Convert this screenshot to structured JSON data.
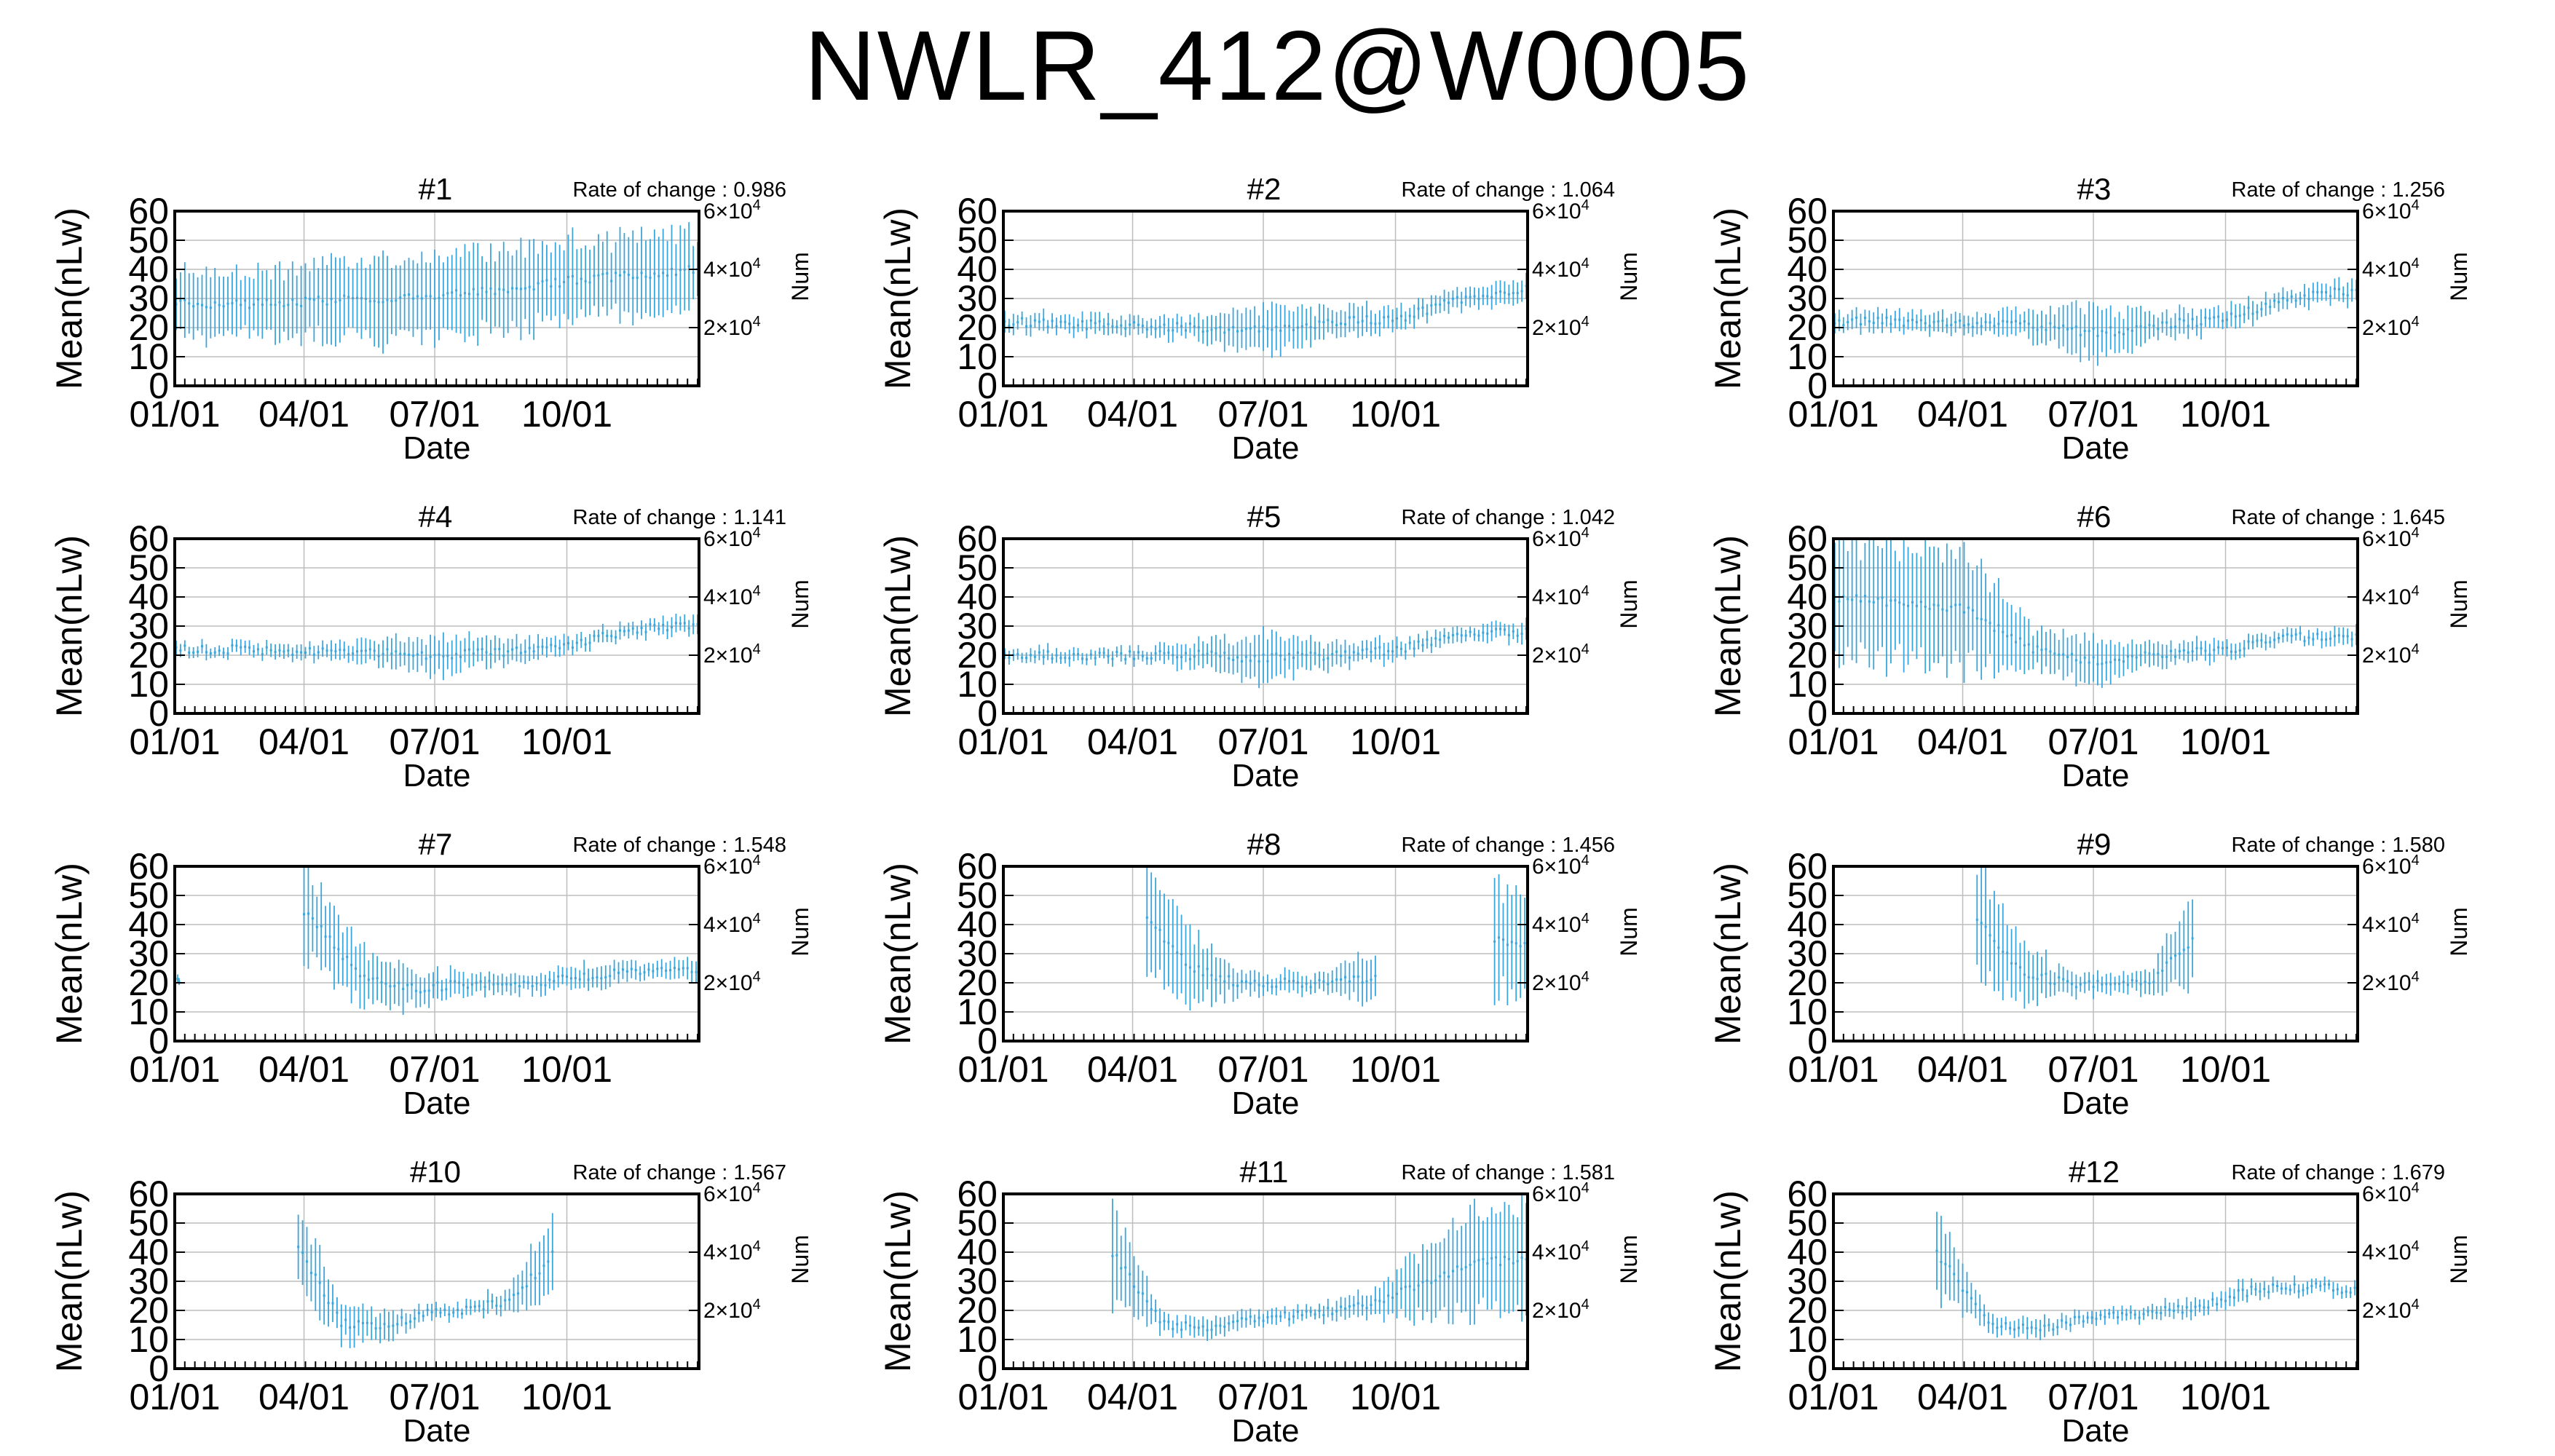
{
  "title": "NWLR_412@W0005",
  "colors": {
    "series": "#3aa6dc",
    "frame": "#000000",
    "grid": "#bdbdbd"
  },
  "axes": {
    "ylabel": "Mean(nLw)",
    "xlabel": "Date",
    "y2label": "Num",
    "y_ticks": [
      "0",
      "10",
      "20",
      "30",
      "40",
      "50",
      "60"
    ],
    "ylim": [
      0,
      60
    ],
    "x_ticks": [
      "01/01",
      "04/01",
      "07/01",
      "10/01"
    ],
    "x_tick_days": [
      0,
      90,
      181,
      273
    ],
    "xlim_days": [
      0,
      365
    ],
    "y2_ticks": [
      {
        "base": "2×10",
        "exp": "4",
        "value": 20000
      },
      {
        "base": "4×10",
        "exp": "4",
        "value": 40000
      },
      {
        "base": "6×10",
        "exp": "4",
        "value": 60000
      }
    ],
    "rate_prefix": "Rate of change : "
  },
  "chart_data": [
    {
      "type": "errorbar",
      "title": "#1",
      "rate": "0.986",
      "segments": [
        {
          "from": 1,
          "to": 365,
          "step": 3,
          "mean": [
            28,
            28,
            29,
            30,
            31,
            33,
            36,
            38,
            40
          ],
          "spread": [
            15,
            15,
            16,
            18,
            18,
            18,
            17,
            17,
            16
          ]
        }
      ]
    },
    {
      "type": "errorbar",
      "title": "#2",
      "rate": "1.064",
      "segments": [
        {
          "from": 1,
          "to": 365,
          "step": 3,
          "mean": [
            22,
            21,
            21,
            20,
            19,
            22,
            23,
            30,
            33
          ],
          "spread": [
            4,
            4,
            4,
            5,
            10,
            6,
            5,
            4,
            5
          ]
        }
      ]
    },
    {
      "type": "errorbar",
      "title": "#3",
      "rate": "1.256",
      "segments": [
        {
          "from": 1,
          "to": 365,
          "step": 3,
          "mean": [
            22,
            22,
            21,
            21,
            18,
            21,
            23,
            30,
            33
          ],
          "spread": [
            4,
            4,
            4,
            6,
            11,
            6,
            5,
            4,
            5
          ]
        }
      ]
    },
    {
      "type": "errorbar",
      "title": "#4",
      "rate": "1.141",
      "segments": [
        {
          "from": 1,
          "to": 365,
          "step": 3,
          "mean": [
            22,
            22,
            21,
            21,
            20,
            21,
            23,
            29,
            31
          ],
          "spread": [
            3,
            3,
            3,
            5,
            9,
            5,
            4,
            3,
            4
          ]
        }
      ]
    },
    {
      "type": "errorbar",
      "title": "#5",
      "rate": "1.042",
      "segments": [
        {
          "from": 1,
          "to": 365,
          "step": 3,
          "mean": [
            20,
            20,
            20,
            20,
            19,
            20,
            22,
            27,
            28
          ],
          "spread": [
            3,
            3,
            3,
            6,
            10,
            5,
            4,
            3,
            4
          ]
        }
      ]
    },
    {
      "type": "errorbar",
      "title": "#6",
      "rate": "1.645",
      "segments": [
        {
          "from": 1,
          "to": 365,
          "step": 3,
          "mean": [
            40,
            38,
            36,
            22,
            18,
            20,
            22,
            26,
            27
          ],
          "spread": [
            25,
            25,
            25,
            9,
            9,
            5,
            4,
            3,
            4
          ]
        }
      ]
    },
    {
      "type": "errorbar",
      "title": "#7",
      "rate": "1.548",
      "segments": [
        {
          "from": 2,
          "to": 3,
          "step": 1,
          "mean": [
            20,
            20
          ],
          "spread": [
            2,
            2
          ]
        },
        {
          "from": 90,
          "to": 365,
          "step": 3,
          "mean": [
            45,
            22,
            18,
            20,
            20,
            22,
            24,
            25
          ],
          "spread": [
            20,
            12,
            8,
            4,
            4,
            5,
            4,
            4
          ]
        }
      ]
    },
    {
      "type": "errorbar",
      "title": "#8",
      "rate": "1.456",
      "segments": [
        {
          "from": 100,
          "to": 260,
          "step": 3,
          "mean": [
            42,
            25,
            20,
            20,
            20,
            22
          ],
          "spread": [
            22,
            15,
            5,
            4,
            4,
            12
          ]
        },
        {
          "from": 342,
          "to": 363,
          "step": 3,
          "mean": [
            35,
            34,
            33
          ],
          "spread": [
            22,
            22,
            22
          ]
        }
      ]
    },
    {
      "type": "errorbar",
      "title": "#9",
      "rate": "1.580",
      "segments": [
        {
          "from": 100,
          "to": 252,
          "step": 3,
          "mean": [
            42,
            24,
            20,
            20,
            21,
            35
          ],
          "spread": [
            22,
            14,
            5,
            4,
            5,
            22
          ]
        }
      ]
    },
    {
      "type": "errorbar",
      "title": "#10",
      "rate": "1.567",
      "segments": [
        {
          "from": 86,
          "to": 265,
          "step": 3,
          "mean": [
            42,
            16,
            14,
            19,
            20,
            24,
            40
          ],
          "spread": [
            20,
            8,
            6,
            3,
            3,
            6,
            22
          ]
        }
      ]
    },
    {
      "type": "errorbar",
      "title": "#11",
      "rate": "1.581",
      "segments": [
        {
          "from": 76,
          "to": 365,
          "step": 3,
          "mean": [
            40,
            15,
            14,
            18,
            19,
            22,
            30,
            36,
            38
          ],
          "spread": [
            20,
            4,
            4,
            3,
            3,
            6,
            14,
            22,
            22
          ]
        }
      ]
    },
    {
      "type": "errorbar",
      "title": "#12",
      "rate": "1.679",
      "segments": [
        {
          "from": 72,
          "to": 365,
          "step": 3,
          "mean": [
            40,
            15,
            14,
            18,
            19,
            21,
            27,
            28,
            27
          ],
          "spread": [
            18,
            4,
            4,
            3,
            3,
            4,
            4,
            3,
            3
          ]
        }
      ]
    }
  ]
}
